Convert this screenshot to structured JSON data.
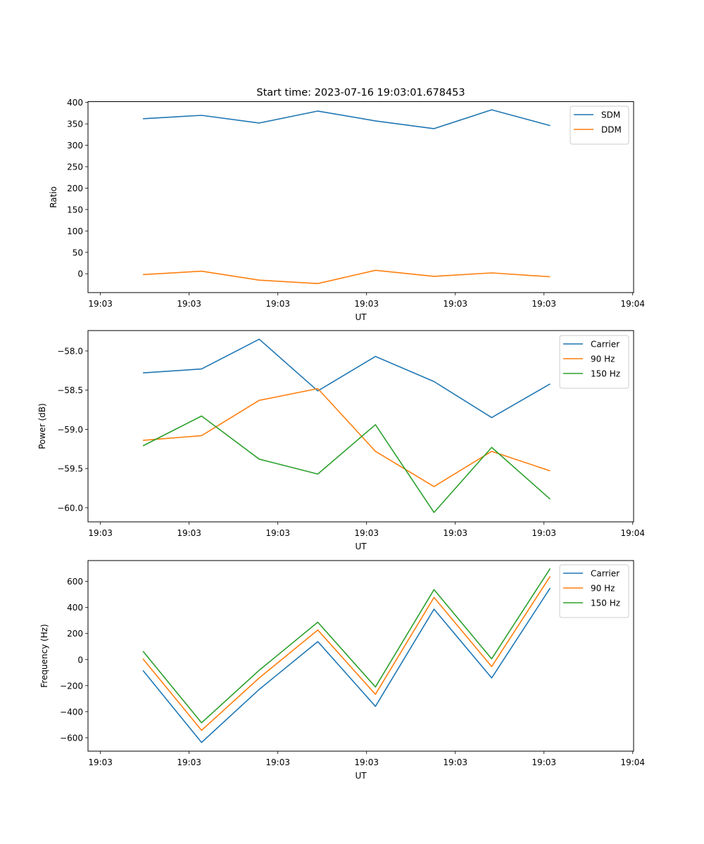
{
  "chart_data": [
    {
      "type": "line",
      "title": "Start time: 2023-07-16 19:03:01.678453",
      "xlabel": "UT",
      "ylabel": "Ratio",
      "x_unit": "seconds after 19:03:00",
      "x": [
        4.8,
        11.4,
        17.9,
        24.5,
        31.0,
        37.6,
        44.1,
        50.7
      ],
      "xlim": [
        -1.4,
        60.1
      ],
      "xticks": [
        0,
        10,
        20,
        30,
        40,
        50,
        60
      ],
      "xtick_labels": [
        "19:03",
        "19:03",
        "19:03",
        "19:03",
        "19:03",
        "19:03",
        "19:04"
      ],
      "ylim": [
        -44,
        402
      ],
      "yticks": [
        0,
        50,
        100,
        150,
        200,
        250,
        300,
        350,
        400
      ],
      "ytick_labels": [
        "0",
        "50",
        "100",
        "150",
        "200",
        "250",
        "300",
        "350",
        "400"
      ],
      "grid": false,
      "legend_position": "top-right",
      "series": [
        {
          "name": "SDM",
          "color": "#1f77b4",
          "values": [
            362,
            370,
            352,
            380,
            357,
            339,
            383,
            346
          ]
        },
        {
          "name": "DDM",
          "color": "#ff7f0e",
          "values": [
            -2,
            6,
            -15,
            -23,
            8,
            -6,
            2,
            -7
          ]
        }
      ]
    },
    {
      "type": "line",
      "title": "",
      "xlabel": "UT",
      "ylabel": "Power (dB)",
      "x_unit": "seconds after 19:03:00",
      "x": [
        4.8,
        11.4,
        17.9,
        24.5,
        31.0,
        37.6,
        44.1,
        50.7
      ],
      "xlim": [
        -1.4,
        60.1
      ],
      "xticks": [
        0,
        10,
        20,
        30,
        40,
        50,
        60
      ],
      "xtick_labels": [
        "19:03",
        "19:03",
        "19:03",
        "19:03",
        "19:03",
        "19:03",
        "19:04"
      ],
      "ylim": [
        -60.18,
        -57.74
      ],
      "yticks": [
        -60.0,
        -59.5,
        -59.0,
        -58.5,
        -58.0
      ],
      "ytick_labels": [
        "−60.0",
        "−59.5",
        "−59.0",
        "−58.5",
        "−58.0"
      ],
      "grid": false,
      "legend_position": "top-right",
      "series": [
        {
          "name": "Carrier",
          "color": "#1f77b4",
          "values": [
            -58.28,
            -58.23,
            -57.85,
            -58.51,
            -58.07,
            -58.39,
            -58.85,
            -58.42
          ]
        },
        {
          "name": "90 Hz",
          "color": "#ff7f0e",
          "values": [
            -59.14,
            -59.08,
            -58.63,
            -58.48,
            -59.28,
            -59.73,
            -59.28,
            -59.53
          ]
        },
        {
          "name": "150 Hz",
          "color": "#2ca02c",
          "values": [
            -59.21,
            -58.83,
            -59.38,
            -59.57,
            -58.94,
            -60.06,
            -59.23,
            -59.89
          ]
        }
      ]
    },
    {
      "type": "line",
      "title": "",
      "xlabel": "UT",
      "ylabel": "Frequency (Hz)",
      "x_unit": "seconds after 19:03:00",
      "x": [
        4.8,
        11.4,
        17.9,
        24.5,
        31.0,
        37.6,
        44.1,
        50.7
      ],
      "xlim": [
        -1.4,
        60.1
      ],
      "xticks": [
        0,
        10,
        20,
        30,
        40,
        50,
        60
      ],
      "xtick_labels": [
        "19:03",
        "19:03",
        "19:03",
        "19:03",
        "19:03",
        "19:03",
        "19:04"
      ],
      "ylim": [
        -703,
        760
      ],
      "yticks": [
        -600,
        -400,
        -200,
        0,
        200,
        400,
        600
      ],
      "ytick_labels": [
        "−600",
        "−400",
        "−200",
        "0",
        "200",
        "400",
        "600"
      ],
      "grid": false,
      "legend_position": "top-right",
      "series": [
        {
          "name": "Carrier",
          "color": "#1f77b4",
          "values": [
            -84,
            -636,
            -229,
            138,
            -359,
            387,
            -141,
            549
          ]
        },
        {
          "name": "90 Hz",
          "color": "#ff7f0e",
          "values": [
            6,
            -543,
            -141,
            227,
            -267,
            477,
            -54,
            639
          ]
        },
        {
          "name": "150 Hz",
          "color": "#2ca02c",
          "values": [
            64,
            -485,
            -82,
            287,
            -210,
            537,
            6,
            699
          ]
        }
      ]
    }
  ]
}
